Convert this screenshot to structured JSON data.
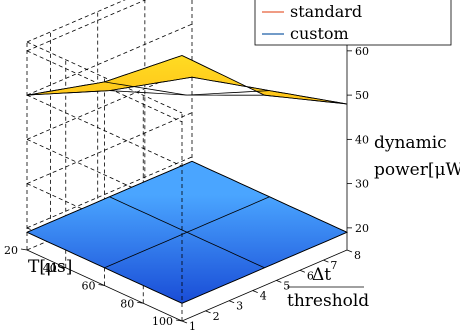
{
  "chart_data": {
    "type": "surface3d",
    "title": "",
    "x_axis": {
      "label": "T[μs]",
      "ticks": [
        "20",
        "40",
        "60",
        "80",
        "100"
      ],
      "range": [
        20,
        100
      ]
    },
    "y_axis": {
      "label_top": "Δt",
      "label_bottom": "threshold",
      "ticks": [
        "1",
        "2",
        "3",
        "4",
        "5",
        "6",
        "7",
        "8"
      ],
      "range": [
        1,
        8
      ]
    },
    "z_axis": {
      "label_line1": "dynamic",
      "label_line2": "power[μW]",
      "ticks": [
        "20",
        "30",
        "40",
        "50",
        "60"
      ],
      "range": [
        15,
        62
      ]
    },
    "grid": true,
    "legend": {
      "position": "top-right"
    },
    "series": [
      {
        "name": "standard",
        "color": "#e8623a",
        "x": [
          20,
          60,
          100
        ],
        "y": [
          1,
          4.5,
          8
        ],
        "z": [
          [
            50,
            61,
            75
          ],
          [
            43,
            50,
            58
          ],
          [
            38,
            43,
            48
          ]
        ]
      },
      {
        "name": "custom",
        "color": "#1f5fa8",
        "x": [
          20,
          60,
          100
        ],
        "y": [
          1,
          4.5,
          8
        ],
        "z": [
          [
            19,
            19,
            19
          ],
          [
            19,
            19,
            19
          ],
          [
            19,
            19,
            19
          ]
        ]
      }
    ]
  }
}
